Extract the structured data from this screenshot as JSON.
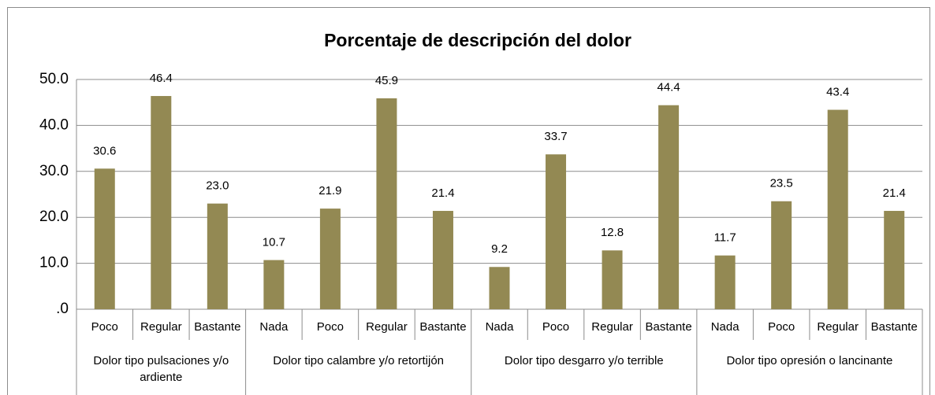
{
  "chart_data": {
    "type": "bar",
    "title": "Porcentaje de descripción del dolor",
    "color": "#938953",
    "grid": true,
    "ylim": [
      0,
      50
    ],
    "yticks": [
      {
        "value": 0,
        "label": ".0"
      },
      {
        "value": 10,
        "label": "10.0"
      },
      {
        "value": 20,
        "label": "20.0"
      },
      {
        "value": 30,
        "label": "30.0"
      },
      {
        "value": 40,
        "label": "40.0"
      },
      {
        "value": 50,
        "label": "50.0"
      }
    ],
    "groups": [
      {
        "name": "Dolor tipo pulsaciones y/o ardiente",
        "categories": [
          "Poco",
          "Regular",
          "Bastante"
        ],
        "values": [
          30.6,
          46.4,
          23.0
        ],
        "value_labels": [
          "30.6",
          "46.4",
          "23.0"
        ]
      },
      {
        "name": "Dolor tipo calambre y/o retortijón",
        "categories": [
          "Nada",
          "Poco",
          "Regular",
          "Bastante"
        ],
        "values": [
          10.7,
          21.9,
          45.9,
          21.4
        ],
        "value_labels": [
          "10.7",
          "21.9",
          "45.9",
          "21.4"
        ]
      },
      {
        "name": "Dolor tipo desgarro y/o terrible",
        "categories": [
          "Nada",
          "Poco",
          "Regular",
          "Bastante"
        ],
        "values": [
          9.2,
          33.7,
          12.8,
          44.4
        ],
        "value_labels": [
          "9.2",
          "33.7",
          "12.8",
          "44.4"
        ]
      },
      {
        "name": "Dolor tipo opresión o lancinante",
        "categories": [
          "Nada",
          "Poco",
          "Regular",
          "Bastante"
        ],
        "values": [
          11.7,
          23.5,
          43.4,
          21.4
        ],
        "value_labels": [
          "11.7",
          "23.5",
          "43.4",
          "21.4"
        ]
      }
    ]
  }
}
